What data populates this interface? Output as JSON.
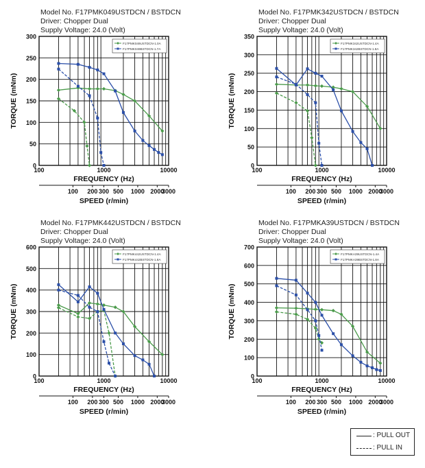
{
  "footer_legend": {
    "pull_out": ": PULL OUT",
    "pull_in": ": PULL IN"
  },
  "colors": {
    "pull_out_series": "#4a9a4a",
    "pull_in_series": "#2b4fa8"
  },
  "chart_data": [
    {
      "type": "line",
      "header": [
        "Model No. F17PMK049USTDCN / BSTDCN",
        "Driver: Chopper Dual",
        "Supply Voltage: 24.0 (Volt)"
      ],
      "ylabel": "TORQUE (mNm)",
      "xlabel": "FREQUENCY (Hz)",
      "x2label": "SPEED (r/min)",
      "x_scale": "log",
      "xlim": [
        100,
        10000
      ],
      "x_ticks": [
        "100",
        "1000",
        "10000"
      ],
      "x2_ticks": [
        "100",
        "200",
        "300",
        "500",
        "1000",
        "2000",
        "3000"
      ],
      "ylim": [
        0,
        300
      ],
      "y_ticks": [
        0,
        50,
        100,
        150,
        200,
        250,
        300
      ],
      "legend_position": "top-right",
      "series": [
        {
          "name": "F17PMK049USTDCN-1.0A",
          "style": "pull out",
          "color": "#4a9a4a",
          "x": [
            200,
            400,
            600,
            800,
            1000,
            1500,
            2000,
            3000,
            5000,
            8000
          ],
          "y": [
            175,
            180,
            178,
            178,
            178,
            174,
            165,
            150,
            115,
            80
          ]
        },
        {
          "name": "F17PMK049USTDCN-1.0A",
          "style": "pull in",
          "color": "#4a9a4a",
          "x": [
            200,
            350,
            500,
            550,
            600
          ],
          "y": [
            155,
            127,
            100,
            45,
            0
          ]
        },
        {
          "name": "F17PMK049BSTDCN-1.7A",
          "style": "pull out",
          "color": "#2b4fa8",
          "x": [
            200,
            400,
            600,
            800,
            1000,
            1500,
            2000,
            3000,
            4000,
            5000,
            6000,
            7000,
            8000
          ],
          "y": [
            237,
            235,
            228,
            222,
            213,
            173,
            123,
            80,
            58,
            46,
            37,
            30,
            25
          ]
        },
        {
          "name": "F17PMK049BSTDCN-1.7A",
          "style": "pull in",
          "color": "#2b4fa8",
          "x": [
            200,
            400,
            600,
            800,
            900,
            1000
          ],
          "y": [
            224,
            184,
            162,
            110,
            30,
            0
          ]
        }
      ]
    },
    {
      "type": "line",
      "header": [
        "Model No. F17PMK342USTDCN / BSTDCN",
        "Driver: Chopper Dual",
        "Supply Voltage: 24.0 (Volt)"
      ],
      "ylabel": "TORQUE (mNm)",
      "xlabel": "FREQUENCY (Hz)",
      "x2label": "SPEED (r/min)",
      "x_scale": "log",
      "xlim": [
        100,
        10000
      ],
      "x_ticks": [
        "100",
        "1000",
        "10000"
      ],
      "x2_ticks": [
        "100",
        "200",
        "300",
        "500",
        "1000",
        "2000",
        "3000"
      ],
      "ylim": [
        0,
        350
      ],
      "y_ticks": [
        0,
        50,
        100,
        150,
        200,
        250,
        300,
        350
      ],
      "legend_position": "top-right",
      "series": [
        {
          "name": "F17PMK342USTDCN-1.4A",
          "style": "pull out",
          "color": "#4a9a4a",
          "x": [
            200,
            400,
            600,
            800,
            1000,
            1500,
            2000,
            3000,
            5000,
            8000
          ],
          "y": [
            220,
            218,
            218,
            216,
            215,
            212,
            208,
            200,
            160,
            100
          ]
        },
        {
          "name": "F17PMK342USTDCN-1.4A",
          "style": "pull in",
          "color": "#4a9a4a",
          "x": [
            200,
            400,
            600,
            700,
            800
          ],
          "y": [
            196,
            170,
            148,
            75,
            0
          ]
        },
        {
          "name": "F17PMK342BSTDCN-1.8A",
          "style": "pull out",
          "color": "#2b4fa8",
          "x": [
            200,
            400,
            600,
            800,
            1000,
            1500,
            2000,
            3000,
            4000,
            5000,
            6000
          ],
          "y": [
            263,
            218,
            262,
            250,
            242,
            205,
            148,
            92,
            62,
            45,
            0
          ]
        },
        {
          "name": "F17PMK342BSTDCN-1.8A",
          "style": "pull in",
          "color": "#2b4fa8",
          "x": [
            200,
            400,
            600,
            800,
            900,
            1000
          ],
          "y": [
            240,
            220,
            192,
            170,
            60,
            0
          ]
        }
      ]
    },
    {
      "type": "line",
      "header": [
        "Model No. F17PMK442USTDCN / BSTDCN",
        "Driver: Chopper Dual",
        "Supply Voltage: 24.0 (Volt)"
      ],
      "ylabel": "TORQUE (mNm)",
      "xlabel": "FREQUENCY (Hz)",
      "x2label": "SPEED (r/min)",
      "x_scale": "log",
      "xlim": [
        100,
        10000
      ],
      "x_ticks": [
        "100",
        "1000",
        "10000"
      ],
      "x2_ticks": [
        "100",
        "200",
        "300",
        "500",
        "1000",
        "2000",
        "3000"
      ],
      "ylim": [
        0,
        600
      ],
      "y_ticks": [
        0,
        100,
        200,
        300,
        400,
        500,
        600
      ],
      "legend_position": "top-right",
      "series": [
        {
          "name": "F17PMK442USTDCN-1.4A",
          "style": "pull out",
          "color": "#4a9a4a",
          "x": [
            200,
            400,
            600,
            800,
            1000,
            1500,
            2000,
            3000,
            5000,
            8000
          ],
          "y": [
            330,
            290,
            340,
            335,
            330,
            320,
            300,
            230,
            160,
            100
          ]
        },
        {
          "name": "F17PMK442USTDCN-1.4A",
          "style": "pull in",
          "color": "#4a9a4a",
          "x": [
            200,
            400,
            600,
            800,
            1000,
            1200,
            1500
          ],
          "y": [
            318,
            275,
            268,
            300,
            305,
            200,
            0
          ]
        },
        {
          "name": "F17PMK442BSTDCN-1.8A",
          "style": "pull out",
          "color": "#2b4fa8",
          "x": [
            200,
            400,
            600,
            800,
            1000,
            1500,
            2000,
            3000,
            4000,
            5000,
            6000
          ],
          "y": [
            425,
            345,
            415,
            385,
            310,
            200,
            150,
            95,
            75,
            55,
            0
          ]
        },
        {
          "name": "F17PMK442BSTDCN-1.8A",
          "style": "pull in",
          "color": "#2b4fa8",
          "x": [
            200,
            400,
            600,
            800,
            1000,
            1200,
            1500
          ],
          "y": [
            400,
            375,
            320,
            300,
            160,
            60,
            0
          ]
        }
      ]
    },
    {
      "type": "line",
      "header": [
        "Model No. F17PMKA39USTDCN / BSTDCN",
        "Driver: Chopper Dual",
        "Supply Voltage: 24.0 (Volt)"
      ],
      "ylabel": "TORQUE (mNm)",
      "xlabel": "FREQUENCY (Hz)",
      "x2label": "SPEED (r/min)",
      "x_scale": "log",
      "xlim": [
        100,
        10000
      ],
      "x_ticks": [
        "100",
        "1000",
        "10000"
      ],
      "x2_ticks": [
        "100",
        "200",
        "300",
        "500",
        "1000",
        "2000",
        "3000"
      ],
      "ylim": [
        0,
        700
      ],
      "y_ticks": [
        0,
        100,
        200,
        300,
        400,
        500,
        600,
        700
      ],
      "legend_position": "top-right",
      "series": [
        {
          "name": "F17PMKA39USTDCN-1.4A",
          "style": "pull out",
          "color": "#4a9a4a",
          "x": [
            200,
            400,
            600,
            800,
            1000,
            1500,
            2000,
            3000,
            5000,
            8000
          ],
          "y": [
            370,
            368,
            365,
            362,
            360,
            355,
            335,
            270,
            130,
            70
          ]
        },
        {
          "name": "F17PMKA39USTDCN-1.4A",
          "style": "pull in",
          "color": "#4a9a4a",
          "x": [
            200,
            400,
            600,
            800,
            900,
            1000
          ],
          "y": [
            348,
            335,
            308,
            260,
            200,
            180
          ]
        },
        {
          "name": "F17PMKA39BSTDCN-1.8A",
          "style": "pull out",
          "color": "#2b4fa8",
          "x": [
            200,
            400,
            600,
            800,
            1000,
            1500,
            2000,
            3000,
            4000,
            5000,
            6000,
            7000,
            8000
          ],
          "y": [
            530,
            520,
            450,
            400,
            330,
            230,
            170,
            110,
            75,
            55,
            45,
            35,
            30
          ]
        },
        {
          "name": "F17PMKA39BSTDCN-1.8A",
          "style": "pull in",
          "color": "#2b4fa8",
          "x": [
            200,
            400,
            600,
            800,
            900,
            1000
          ],
          "y": [
            490,
            440,
            360,
            300,
            220,
            140
          ]
        }
      ]
    }
  ]
}
